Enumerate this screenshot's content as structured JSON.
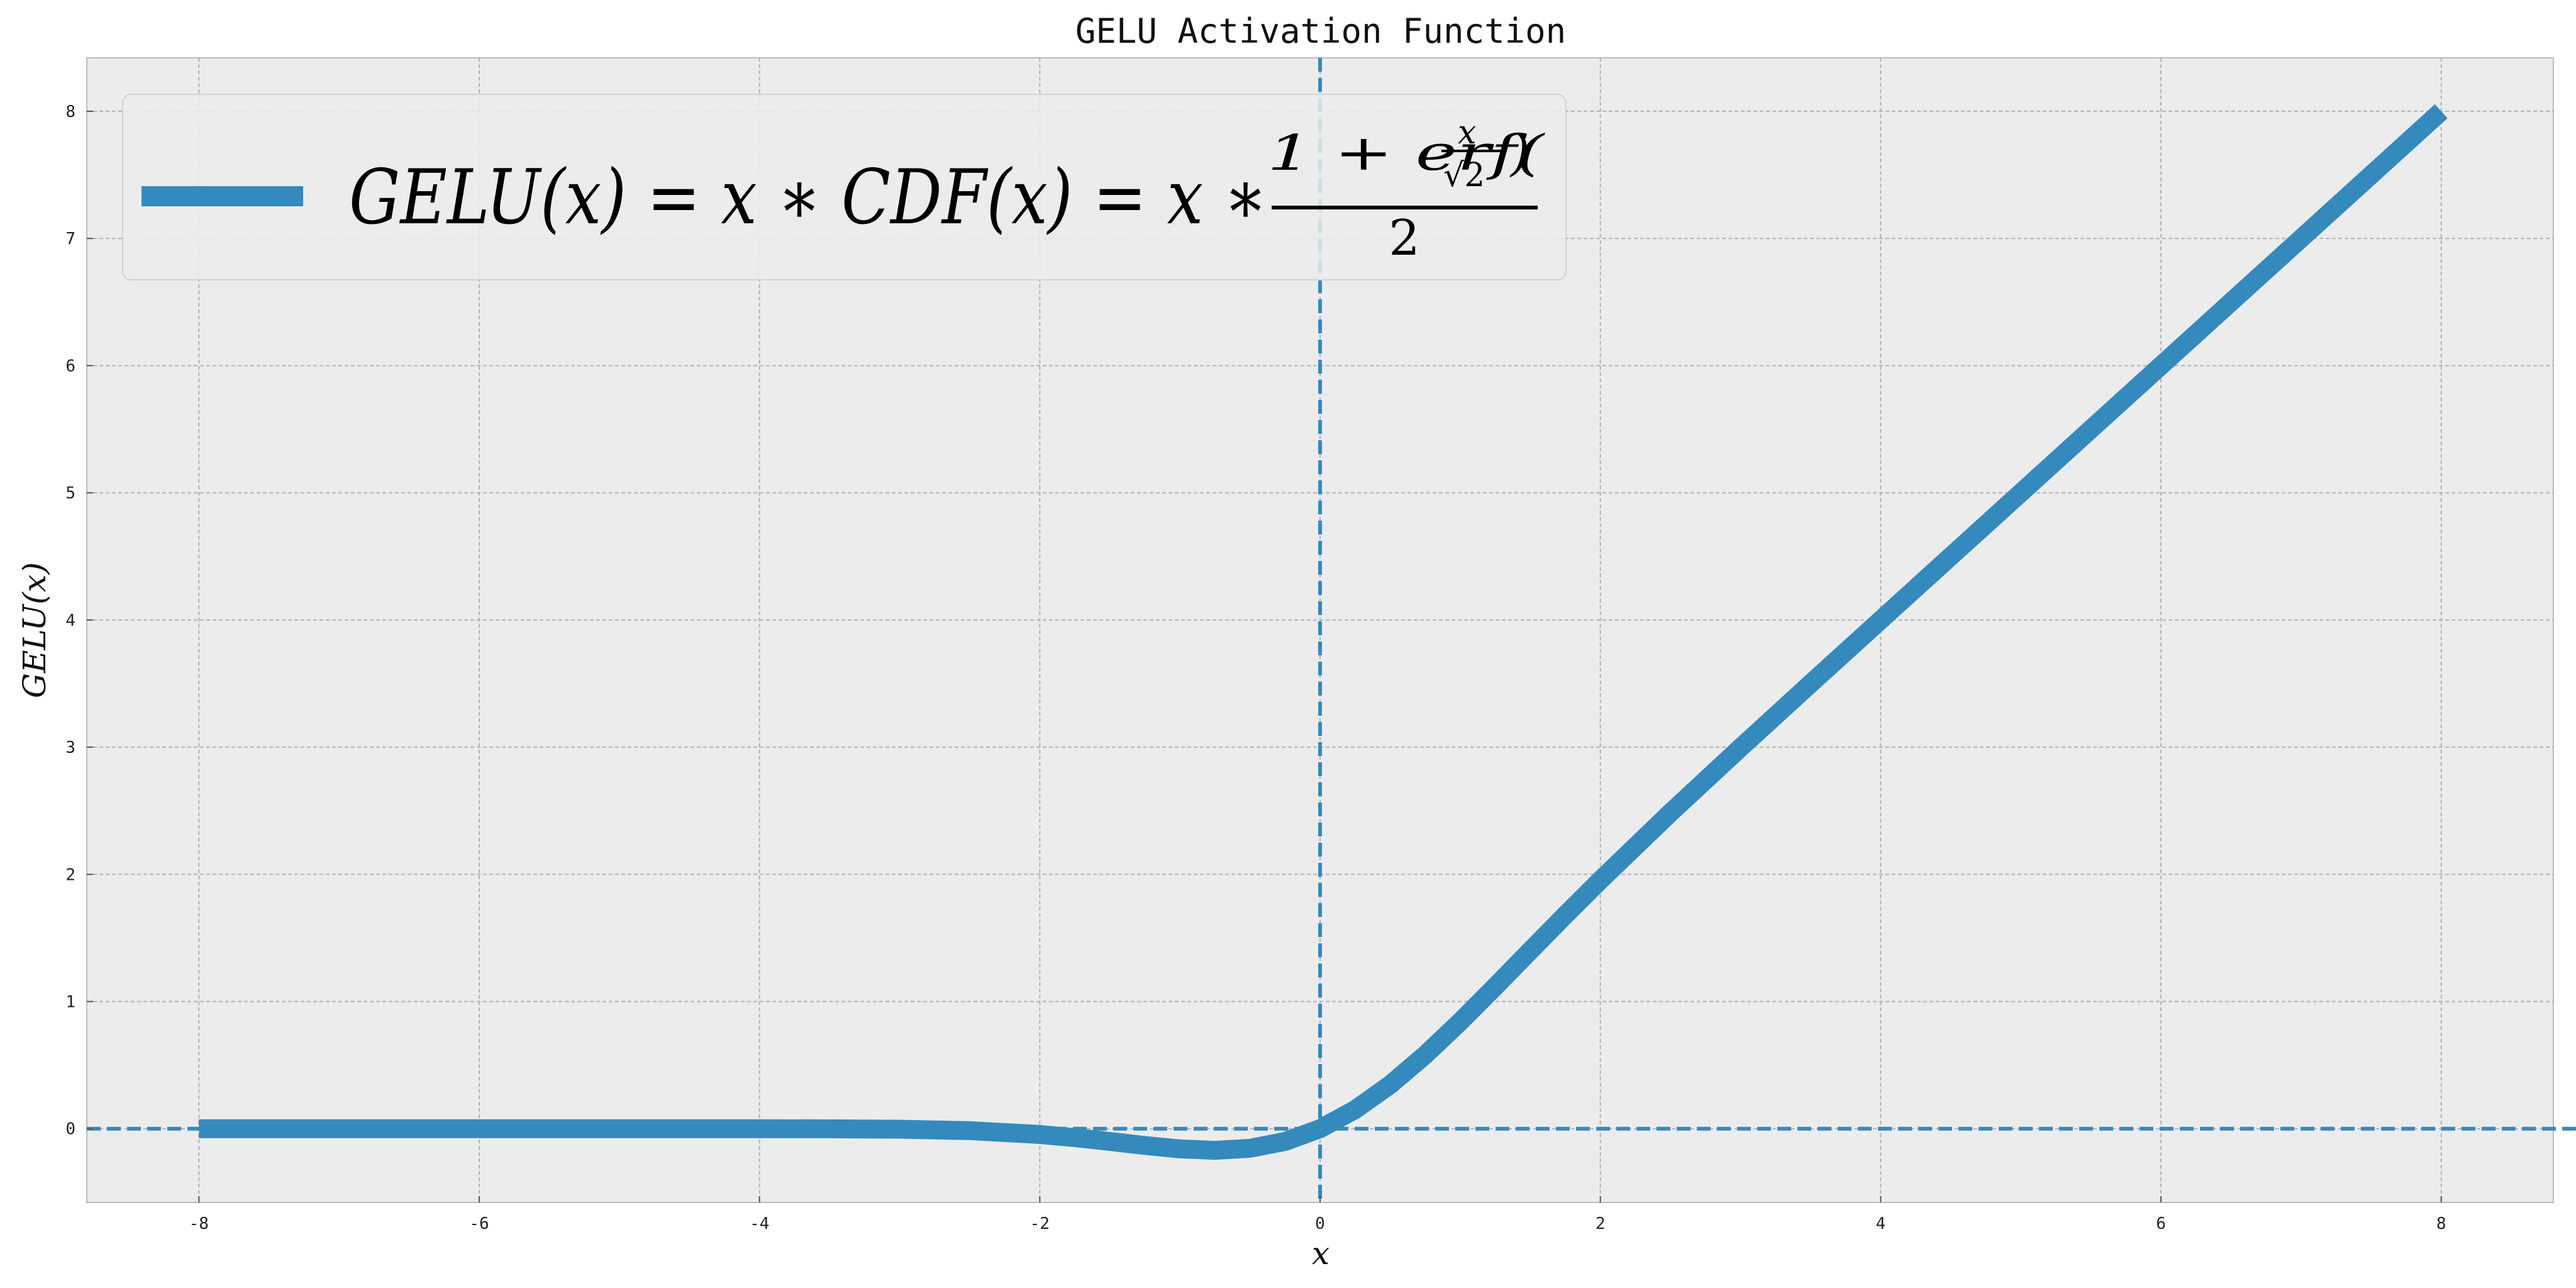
{
  "chart_data": {
    "type": "line",
    "title": "GELU Activation Function",
    "xlabel": "x",
    "ylabel": "GELU(x)",
    "xlim": [
      -8.8,
      8.8
    ],
    "ylim": [
      -0.58,
      8.42
    ],
    "x_ticks": [
      -8,
      -6,
      -4,
      -2,
      0,
      2,
      4,
      6,
      8
    ],
    "y_ticks": [
      0,
      1,
      2,
      3,
      4,
      5,
      6,
      7,
      8
    ],
    "grid": true,
    "legend_position": "upper-left",
    "reference_lines": [
      {
        "orientation": "vertical",
        "value": 0,
        "style": "dashed"
      },
      {
        "orientation": "horizontal",
        "value": 0,
        "style": "dashed"
      }
    ],
    "series": [
      {
        "name": "GELU(x) = x * CDF(x) = x * (1 + erf(x/√2)) / 2",
        "color": "#348abd",
        "x": [
          -8,
          -7,
          -6,
          -5,
          -4,
          -3.5,
          -3,
          -2.5,
          -2,
          -1.75,
          -1.5,
          -1.25,
          -1,
          -0.75,
          -0.5,
          -0.25,
          0,
          0.25,
          0.5,
          0.75,
          1,
          1.25,
          1.5,
          1.75,
          2,
          2.5,
          3,
          3.5,
          4,
          5,
          6,
          7,
          8
        ],
        "y": [
          0,
          0,
          0,
          0,
          -0.0001,
          -0.0008,
          -0.004,
          -0.0155,
          -0.0455,
          -0.0702,
          -0.1002,
          -0.1321,
          -0.1587,
          -0.17,
          -0.1543,
          -0.1003,
          0,
          0.1497,
          0.3457,
          0.58,
          0.8413,
          1.1179,
          1.3998,
          1.6798,
          1.9545,
          2.4845,
          2.996,
          3.4992,
          3.9999,
          5,
          6,
          7,
          8
        ]
      }
    ]
  }
}
